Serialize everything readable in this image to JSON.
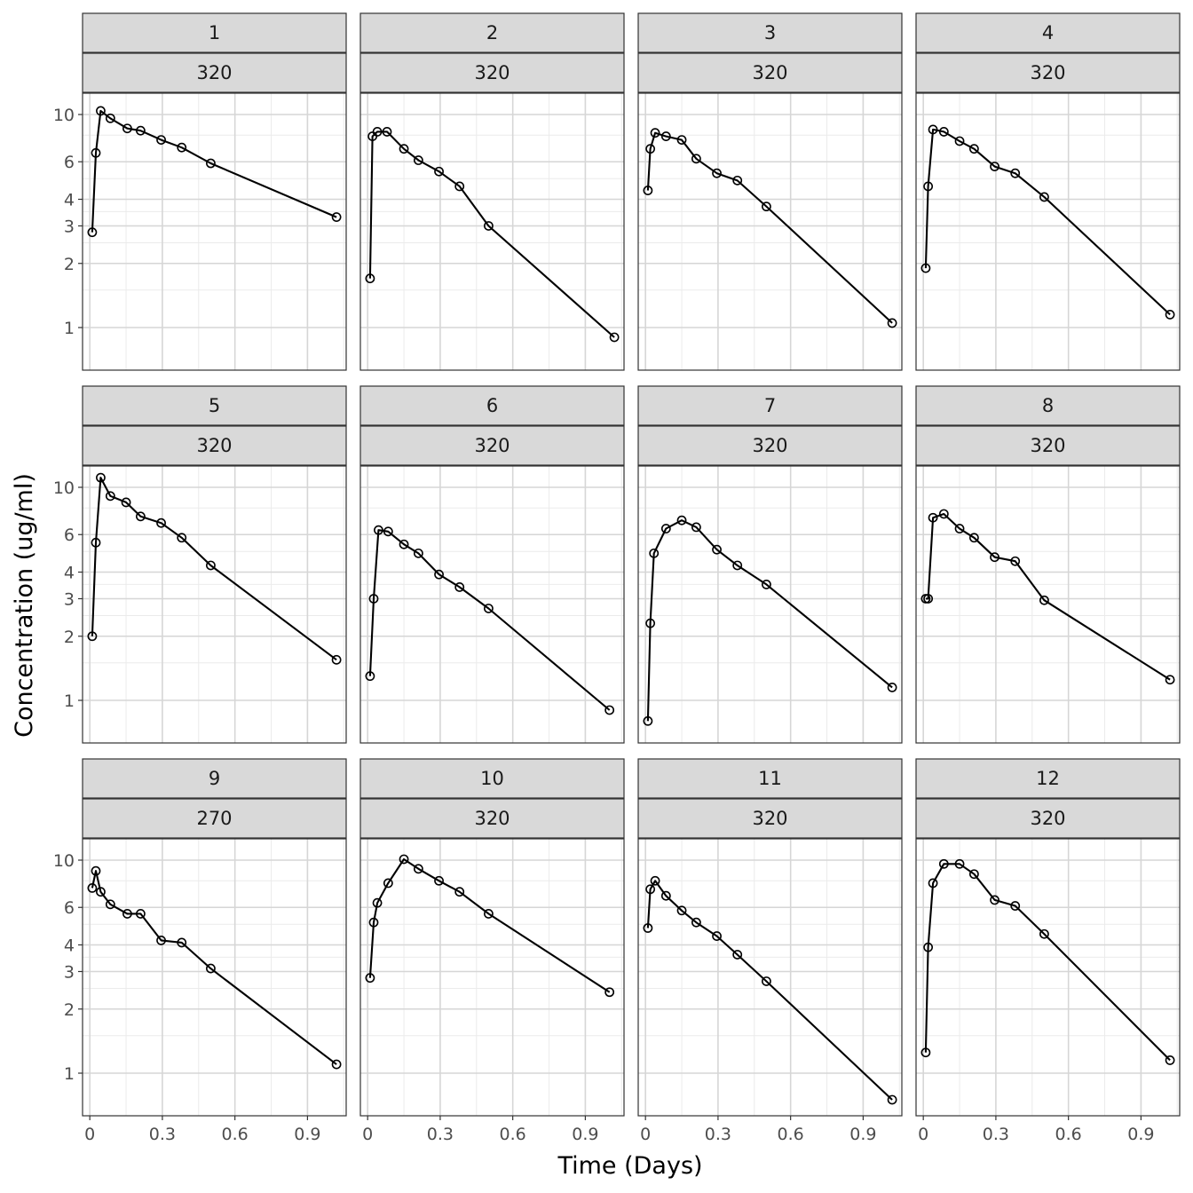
{
  "chart_data": {
    "type": "line",
    "layout": "facet-grid",
    "xlabel": "Time (Days)",
    "ylabel": "Concentration (ug/ml)",
    "xlim": [
      -0.03,
      1.06
    ],
    "ylim_log10": [
      -0.2,
      1.1
    ],
    "y_scale": "log10",
    "x_ticks": [
      0,
      0.3,
      0.6,
      0.9
    ],
    "x_tick_labels": [
      "0",
      "0.3",
      "0.6",
      "0.9"
    ],
    "y_ticks": [
      1,
      2,
      3,
      4,
      6,
      10
    ],
    "y_tick_labels": [
      "1",
      "2",
      "3",
      "4",
      "6",
      "10"
    ],
    "grid": true,
    "marker": "open-circle",
    "line_color": "#000000",
    "strip_fill": "#d9d9d9",
    "panels": [
      {
        "id": "1",
        "dose": "320",
        "x": [
          0.01,
          0.025,
          0.045,
          0.085,
          0.155,
          0.21,
          0.295,
          0.38,
          0.5,
          1.02
        ],
        "y": [
          2.8,
          6.6,
          10.4,
          9.6,
          8.6,
          8.4,
          7.6,
          7.0,
          5.9,
          3.3
        ]
      },
      {
        "id": "2",
        "dose": "320",
        "x": [
          0.01,
          0.02,
          0.04,
          0.08,
          0.15,
          0.21,
          0.295,
          0.38,
          0.5,
          1.02
        ],
        "y": [
          1.7,
          7.9,
          8.3,
          8.3,
          6.9,
          6.1,
          5.4,
          4.6,
          3.0,
          0.9
        ]
      },
      {
        "id": "3",
        "dose": "320",
        "x": [
          0.01,
          0.02,
          0.04,
          0.085,
          0.15,
          0.21,
          0.295,
          0.38,
          0.5,
          1.02
        ],
        "y": [
          4.4,
          6.9,
          8.2,
          7.9,
          7.6,
          6.2,
          5.3,
          4.9,
          3.7,
          1.05
        ]
      },
      {
        "id": "4",
        "dose": "320",
        "x": [
          0.01,
          0.02,
          0.04,
          0.085,
          0.15,
          0.21,
          0.295,
          0.38,
          0.5,
          1.02
        ],
        "y": [
          1.9,
          4.6,
          8.5,
          8.3,
          7.5,
          6.9,
          5.7,
          5.3,
          4.1,
          1.15
        ]
      },
      {
        "id": "5",
        "dose": "320",
        "x": [
          0.01,
          0.025,
          0.045,
          0.085,
          0.15,
          0.21,
          0.295,
          0.38,
          0.5,
          1.02
        ],
        "y": [
          2.0,
          5.5,
          11.1,
          9.1,
          8.5,
          7.3,
          6.8,
          5.8,
          4.3,
          1.55
        ]
      },
      {
        "id": "6",
        "dose": "320",
        "x": [
          0.01,
          0.025,
          0.045,
          0.085,
          0.15,
          0.21,
          0.295,
          0.38,
          0.5,
          1.0
        ],
        "y": [
          1.3,
          3.0,
          6.3,
          6.2,
          5.4,
          4.9,
          3.9,
          3.4,
          2.7,
          0.9
        ]
      },
      {
        "id": "7",
        "dose": "320",
        "x": [
          0.01,
          0.02,
          0.035,
          0.085,
          0.15,
          0.21,
          0.295,
          0.38,
          0.5,
          1.02
        ],
        "y": [
          0.8,
          2.3,
          4.9,
          6.4,
          7.0,
          6.5,
          5.1,
          4.3,
          3.5,
          1.15
        ]
      },
      {
        "id": "8",
        "dose": "320",
        "x": [
          0.01,
          0.02,
          0.04,
          0.085,
          0.15,
          0.21,
          0.295,
          0.38,
          0.5,
          1.02
        ],
        "y": [
          3.0,
          3.0,
          7.2,
          7.5,
          6.4,
          5.8,
          4.7,
          4.5,
          2.95,
          1.25
        ]
      },
      {
        "id": "9",
        "dose": "270",
        "x": [
          0.01,
          0.025,
          0.045,
          0.085,
          0.155,
          0.21,
          0.295,
          0.38,
          0.5,
          1.02
        ],
        "y": [
          7.4,
          8.9,
          7.1,
          6.2,
          5.6,
          5.6,
          4.2,
          4.1,
          3.1,
          1.1
        ]
      },
      {
        "id": "10",
        "dose": "320",
        "x": [
          0.01,
          0.025,
          0.04,
          0.085,
          0.15,
          0.21,
          0.295,
          0.38,
          0.5,
          1.0
        ],
        "y": [
          2.8,
          5.1,
          6.3,
          7.8,
          10.1,
          9.1,
          8.0,
          7.1,
          5.6,
          2.4
        ]
      },
      {
        "id": "11",
        "dose": "320",
        "x": [
          0.01,
          0.02,
          0.04,
          0.085,
          0.15,
          0.21,
          0.295,
          0.38,
          0.5,
          1.02
        ],
        "y": [
          4.8,
          7.3,
          8.0,
          6.8,
          5.8,
          5.1,
          4.4,
          3.6,
          2.7,
          0.75
        ]
      },
      {
        "id": "12",
        "dose": "320",
        "x": [
          0.01,
          0.02,
          0.04,
          0.085,
          0.15,
          0.21,
          0.295,
          0.38,
          0.5,
          1.02
        ],
        "y": [
          1.25,
          3.9,
          7.8,
          9.6,
          9.6,
          8.6,
          6.5,
          6.1,
          4.5,
          1.15
        ]
      }
    ]
  }
}
